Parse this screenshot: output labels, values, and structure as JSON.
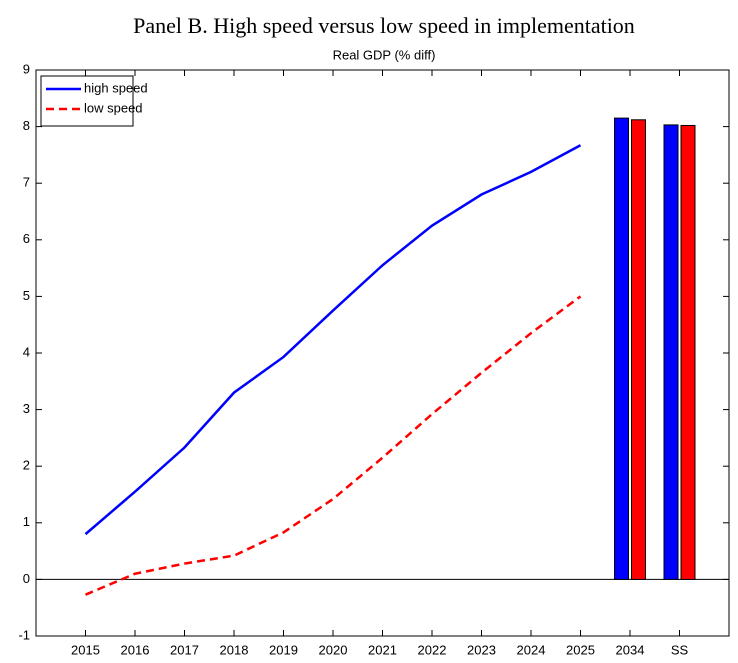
{
  "chart_data": {
    "type": "line",
    "title": "Panel B. High speed versus low speed in implementation",
    "subtitle": "Real GDP (% diff)",
    "categories": [
      "2015",
      "2016",
      "2017",
      "2018",
      "2019",
      "2020",
      "2021",
      "2022",
      "2023",
      "2024",
      "2025",
      "2034",
      "SS"
    ],
    "category_marks": [
      "line",
      "line",
      "line",
      "line",
      "line",
      "line",
      "line",
      "line",
      "line",
      "line",
      "line",
      "bar",
      "bar"
    ],
    "series": [
      {
        "name": "high speed",
        "color": "#0000ff",
        "dash": "solid",
        "values": [
          0.8,
          1.55,
          2.33,
          3.3,
          3.93,
          4.75,
          5.55,
          6.25,
          6.8,
          7.2,
          7.67,
          8.15,
          8.03
        ]
      },
      {
        "name": "low speed",
        "color": "#ff0000",
        "dash": "dashed",
        "values": [
          -0.27,
          0.1,
          0.28,
          0.42,
          0.83,
          1.42,
          2.15,
          2.92,
          3.65,
          4.35,
          5.0,
          8.12,
          8.02
        ]
      }
    ],
    "ylim": [
      -1,
      9
    ],
    "yticks": [
      -1,
      0,
      1,
      2,
      3,
      4,
      5,
      6,
      7,
      8,
      9
    ],
    "legend": "upper left",
    "zero_line": true
  }
}
